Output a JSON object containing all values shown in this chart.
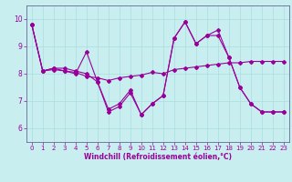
{
  "xlabel": "Windchill (Refroidissement éolien,°C)",
  "bg_color": "#c8eef0",
  "line_color": "#990099",
  "grid_color": "#aadddd",
  "spine_color": "#666699",
  "ylim": [
    5.5,
    10.5
  ],
  "xlim": [
    -0.5,
    23.5
  ],
  "yticks": [
    6,
    7,
    8,
    9,
    10
  ],
  "xticks": [
    0,
    1,
    2,
    3,
    4,
    5,
    6,
    7,
    8,
    9,
    10,
    11,
    12,
    13,
    14,
    15,
    16,
    17,
    18,
    19,
    20,
    21,
    22,
    23
  ],
  "series": [
    [
      9.8,
      8.1,
      8.2,
      8.1,
      8.0,
      8.8,
      7.7,
      6.6,
      6.8,
      7.3,
      6.5,
      6.9,
      7.2,
      9.3,
      9.9,
      9.1,
      9.4,
      9.6,
      8.6,
      7.5,
      6.9,
      6.6,
      6.6,
      6.6
    ],
    [
      9.8,
      8.1,
      8.15,
      8.1,
      8.05,
      7.9,
      7.85,
      7.75,
      7.85,
      7.9,
      7.95,
      8.05,
      8.0,
      8.15,
      8.2,
      8.25,
      8.3,
      8.35,
      8.4,
      8.4,
      8.45,
      8.45,
      8.45,
      8.45
    ],
    [
      9.8,
      8.1,
      8.2,
      8.2,
      8.1,
      8.0,
      7.7,
      6.7,
      6.9,
      7.4,
      6.5,
      6.9,
      7.2,
      9.3,
      9.9,
      9.1,
      9.4,
      9.4,
      8.6,
      7.5,
      6.9,
      6.6,
      6.6,
      6.6
    ]
  ],
  "marker_size": 2.0,
  "line_width": 0.8,
  "tick_fontsize": 5.0,
  "xlabel_fontsize": 5.5
}
